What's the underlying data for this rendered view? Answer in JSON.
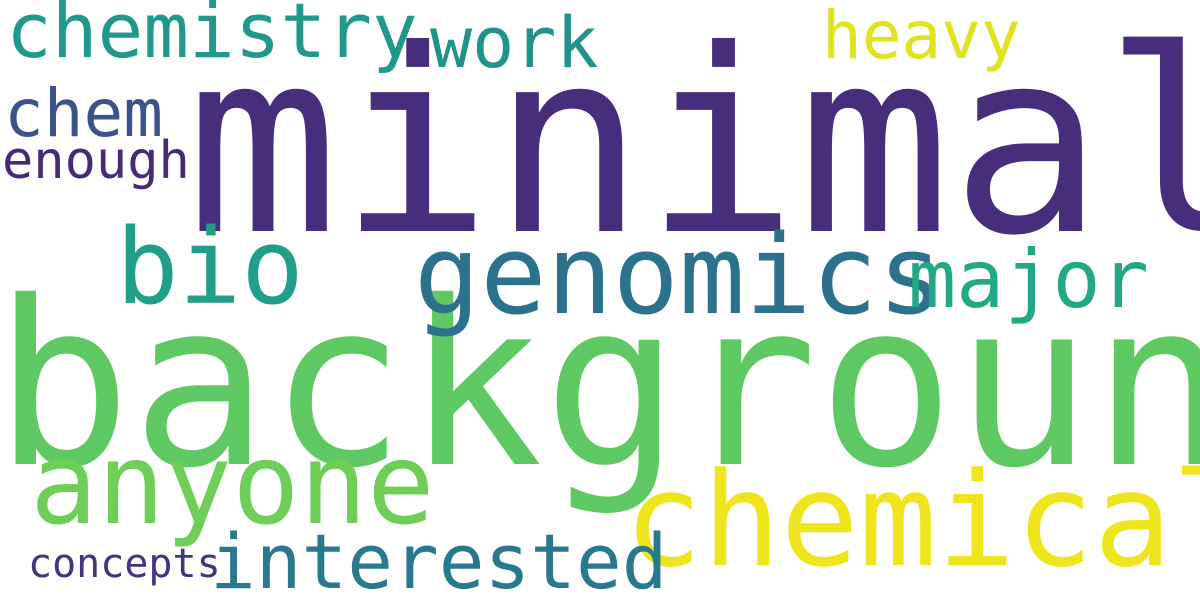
{
  "word_cloud": {
    "background_color": "#ffffff",
    "words": [
      {
        "key": "chemistry",
        "text": "chemistry",
        "color": "#21988c"
      },
      {
        "key": "work",
        "text": "work",
        "color": "#21928c"
      },
      {
        "key": "heavy",
        "text": "heavy",
        "color": "#dfe41d"
      },
      {
        "key": "minimal",
        "text": "minimal",
        "color": "#472d7b"
      },
      {
        "key": "chem",
        "text": "chem",
        "color": "#3b528b"
      },
      {
        "key": "enough",
        "text": "enough",
        "color": "#482878"
      },
      {
        "key": "bio",
        "text": "bio",
        "color": "#1f9e89"
      },
      {
        "key": "genomics",
        "text": "genomics",
        "color": "#2c728e"
      },
      {
        "key": "major",
        "text": "major",
        "color": "#22a884"
      },
      {
        "key": "background",
        "text": "background",
        "color": "#5ec962"
      },
      {
        "key": "anyone",
        "text": "anyone",
        "color": "#6ece58"
      },
      {
        "key": "chemical",
        "text": "chemical",
        "color": "#f0e51c"
      },
      {
        "key": "interested",
        "text": "interested",
        "color": "#2a788e"
      },
      {
        "key": "concepts",
        "text": "concepts",
        "color": "#46327e"
      }
    ]
  }
}
